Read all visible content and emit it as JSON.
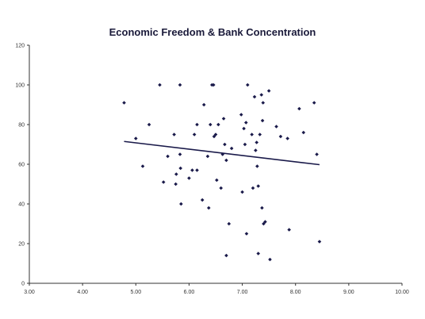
{
  "chart_data": {
    "type": "scatter",
    "title": "Economic Freedom & Bank Concentration",
    "xlabel": "",
    "ylabel": "",
    "xlim": [
      3.0,
      10.0
    ],
    "ylim": [
      0,
      120
    ],
    "x_ticks": [
      "3.00",
      "4.00",
      "5.00",
      "6.00",
      "7.00",
      "8.00",
      "9.00",
      "10.00"
    ],
    "y_ticks": [
      "0",
      "20",
      "40",
      "60",
      "80",
      "100",
      "120"
    ],
    "grid": false,
    "legend": "none",
    "colors": {
      "points": "#1a1a4a",
      "trendline": "#1a1a4a",
      "axis": "#333333"
    },
    "series": [
      {
        "points": [
          [
            4.78,
            91
          ],
          [
            5.0,
            73
          ],
          [
            5.13,
            59
          ],
          [
            5.25,
            80
          ],
          [
            5.45,
            100
          ],
          [
            5.52,
            51
          ],
          [
            5.6,
            64
          ],
          [
            5.72,
            75
          ],
          [
            5.75,
            50
          ],
          [
            5.76,
            55
          ],
          [
            5.83,
            100
          ],
          [
            5.83,
            65
          ],
          [
            5.84,
            58
          ],
          [
            5.85,
            40
          ],
          [
            6.0,
            53
          ],
          [
            6.06,
            57
          ],
          [
            6.1,
            75
          ],
          [
            6.15,
            80
          ],
          [
            6.15,
            57
          ],
          [
            6.25,
            42
          ],
          [
            6.28,
            90
          ],
          [
            6.35,
            64
          ],
          [
            6.37,
            38
          ],
          [
            6.4,
            80
          ],
          [
            6.43,
            100
          ],
          [
            6.46,
            100
          ],
          [
            6.47,
            74
          ],
          [
            6.5,
            75
          ],
          [
            6.52,
            52
          ],
          [
            6.55,
            80
          ],
          [
            6.6,
            48
          ],
          [
            6.63,
            65
          ],
          [
            6.65,
            83
          ],
          [
            6.67,
            70
          ],
          [
            6.7,
            62
          ],
          [
            6.7,
            14
          ],
          [
            6.75,
            30
          ],
          [
            6.8,
            68
          ],
          [
            6.98,
            85
          ],
          [
            7.0,
            46
          ],
          [
            7.03,
            78
          ],
          [
            7.05,
            70
          ],
          [
            7.07,
            81
          ],
          [
            7.08,
            25
          ],
          [
            7.1,
            100
          ],
          [
            7.18,
            75
          ],
          [
            7.2,
            48
          ],
          [
            7.23,
            94
          ],
          [
            7.25,
            67
          ],
          [
            7.27,
            71
          ],
          [
            7.28,
            59
          ],
          [
            7.3,
            49
          ],
          [
            7.3,
            15
          ],
          [
            7.33,
            75
          ],
          [
            7.36,
            95
          ],
          [
            7.37,
            38
          ],
          [
            7.38,
            82
          ],
          [
            7.39,
            91
          ],
          [
            7.4,
            30
          ],
          [
            7.43,
            31
          ],
          [
            7.5,
            97
          ],
          [
            7.52,
            12
          ],
          [
            7.64,
            79
          ],
          [
            7.72,
            74
          ],
          [
            7.85,
            73
          ],
          [
            7.88,
            27
          ],
          [
            8.07,
            88
          ],
          [
            8.15,
            76
          ],
          [
            8.35,
            91
          ],
          [
            8.4,
            65
          ],
          [
            8.45,
            21
          ]
        ]
      }
    ],
    "trendline": {
      "x": [
        4.78,
        8.45
      ],
      "y": [
        71.5,
        59.8
      ]
    }
  }
}
